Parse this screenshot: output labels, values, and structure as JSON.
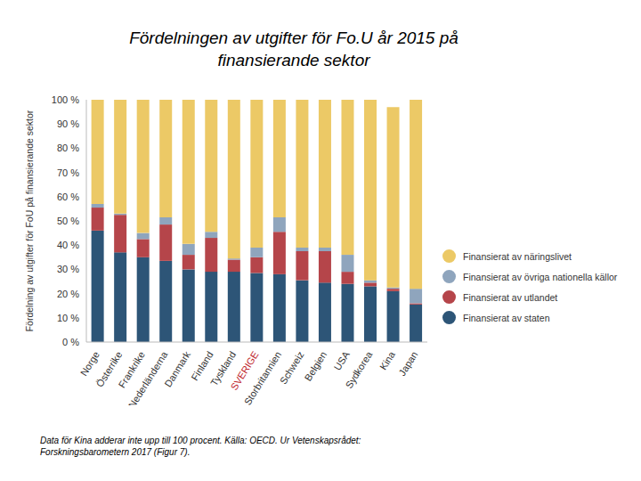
{
  "chart_data": {
    "type": "bar",
    "stacked": true,
    "title": "Fördelningen av utgifter för Fo.U år 2015 på finansierande sektor",
    "y_label": "Fördelning av utgifter för FoU på finansierande sektor",
    "note": "Data för Kina adderar inte upp till 100 procent. Källa: OECD. Ur Vetenskapsrådet: Forskningsbarometern 2017 (Figur 7).",
    "categories": [
      "Norge",
      "Österrike",
      "Frankrike",
      "Nederländerna",
      "Danmark",
      "Finland",
      "Tyskland",
      "SVERIGE",
      "Storbritannien",
      "Schweiz",
      "Belgien",
      "USA",
      "Sydkorea",
      "Kina",
      "Japan"
    ],
    "series": [
      {
        "name": "Finansierat av staten",
        "color": "#2d5577",
        "values": [
          46,
          37,
          35,
          33.5,
          30,
          29,
          29,
          28.5,
          28,
          25.5,
          24.5,
          24,
          23,
          21,
          15.5
        ]
      },
      {
        "name": "Finansierat av utlandet",
        "color": "#b5454a",
        "values": [
          9.5,
          15.5,
          7.5,
          15,
          6,
          14,
          5,
          6.5,
          17.5,
          12,
          13,
          5,
          1.5,
          1,
          0.5
        ]
      },
      {
        "name": "Finansierat av övriga nationella källor",
        "color": "#8fa5bd",
        "values": [
          1.5,
          0.5,
          2.5,
          3,
          4.5,
          2.5,
          0.5,
          4,
          6,
          1.5,
          1.5,
          7,
          1,
          0.5,
          6
        ]
      },
      {
        "name": "Finansierat av näringslivet",
        "color": "#ecc966",
        "values": [
          43,
          47,
          55,
          48.5,
          59.5,
          54.5,
          65.5,
          61,
          48.5,
          61,
          61,
          64,
          74.5,
          74.5,
          78
        ]
      }
    ],
    "ylim": [
      0,
      100
    ],
    "yticks": [
      {
        "value": 0,
        "label": "0 %"
      },
      {
        "value": 10,
        "label": "10 %"
      },
      {
        "value": 20,
        "label": "20 %"
      },
      {
        "value": 30,
        "label": "30 %"
      },
      {
        "value": 40,
        "label": "40 %"
      },
      {
        "value": 50,
        "label": "50 %"
      },
      {
        "value": 60,
        "label": "60 %"
      },
      {
        "value": 70,
        "label": "70 %"
      },
      {
        "value": 80,
        "label": "80 %"
      },
      {
        "value": 90,
        "label": "90 %"
      },
      {
        "value": 100,
        "label": "100 %"
      }
    ],
    "grid": false,
    "legend": "right"
  }
}
